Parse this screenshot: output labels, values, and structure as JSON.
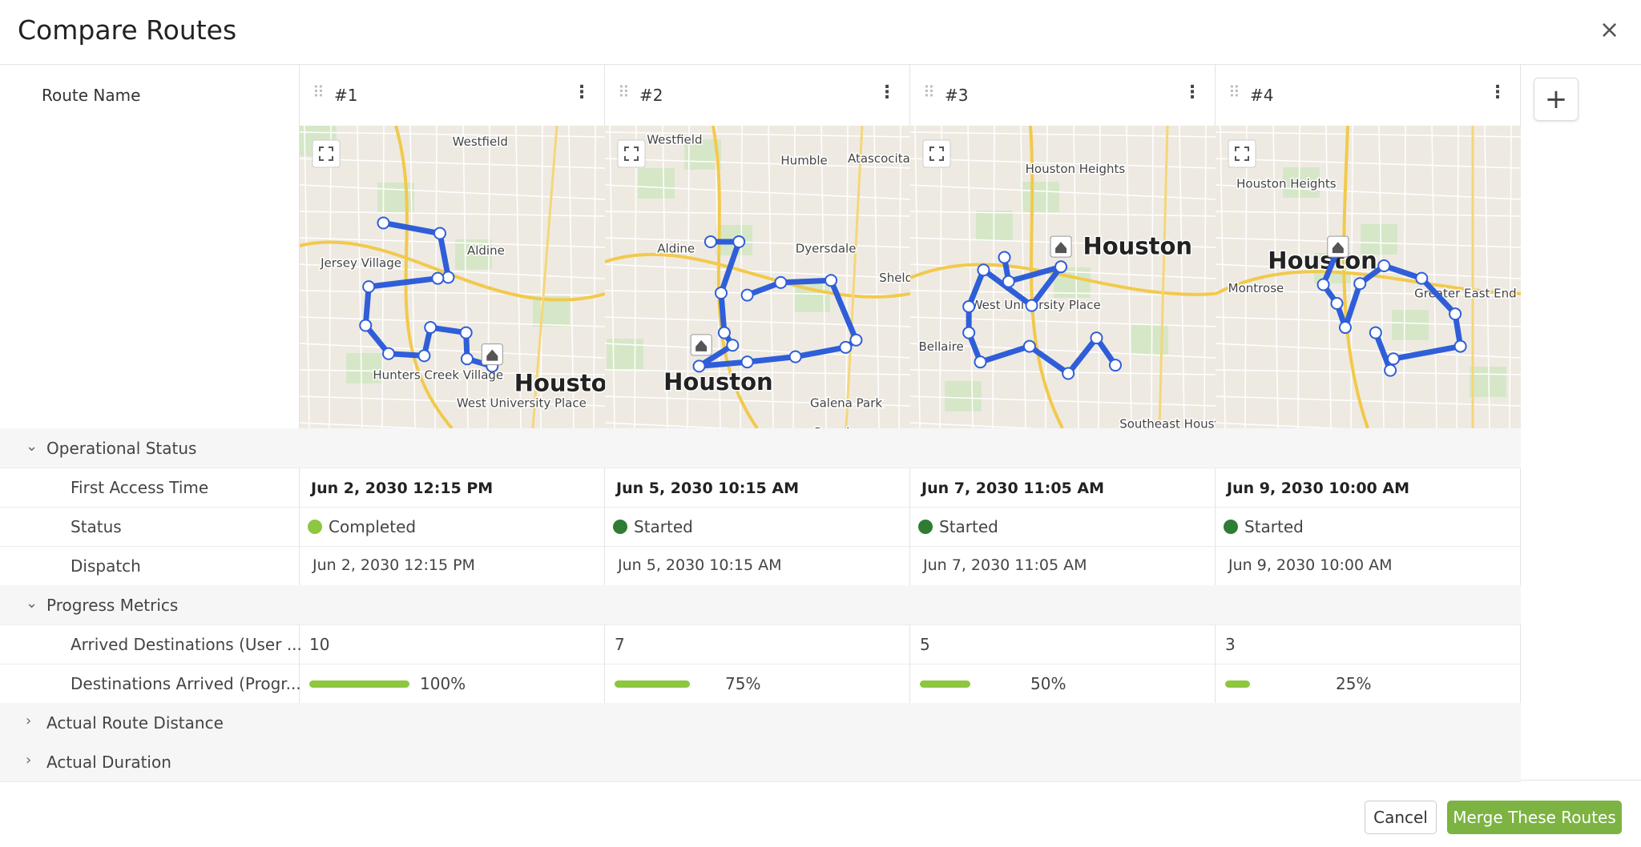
{
  "title": "Compare Routes",
  "row_header": "Route Name",
  "routes": [
    {
      "name": "#1",
      "first_access": "Jun 2, 2030 12:15 PM",
      "status": "Completed",
      "status_color": "#8dc63f",
      "dispatch": "Jun 2, 2030 12:15 PM",
      "arrived": 10,
      "progress": 100,
      "progress_label": "100%",
      "map_labels": [
        "Westfield",
        "Aldine",
        "Jersey Village",
        "Hunters Creek Village",
        "Houston",
        "West University Place"
      ]
    },
    {
      "name": "#2",
      "first_access": "Jun 5, 2030 10:15 AM",
      "status": "Started",
      "status_color": "#2e7d32",
      "dispatch": "Jun 5, 2030 10:15 AM",
      "arrived": 7,
      "progress": 75,
      "progress_label": "75%",
      "map_labels": [
        "Westfield",
        "Humble",
        "Atascocita",
        "Aldine",
        "Dyersdale",
        "Sheldon",
        "Houston",
        "Galena Park",
        "Pasadena"
      ]
    },
    {
      "name": "#3",
      "first_access": "Jun 7, 2030 11:05 AM",
      "status": "Started",
      "status_color": "#2e7d32",
      "dispatch": "Jun 7, 2030 11:05 AM",
      "arrived": 5,
      "progress": 50,
      "progress_label": "50%",
      "map_labels": [
        "Houston Heights",
        "Houston",
        "Bellaire",
        "West University Place",
        "Southeast Houston"
      ]
    },
    {
      "name": "#4",
      "first_access": "Jun 9, 2030 10:00 AM",
      "status": "Started",
      "status_color": "#2e7d32",
      "dispatch": "Jun 9, 2030 10:00 AM",
      "arrived": 3,
      "progress": 25,
      "progress_label": "25%",
      "map_labels": [
        "Houston Heights",
        "Houston",
        "Montrose",
        "Greater East End"
      ]
    }
  ],
  "sections": [
    {
      "name": "Operational Status",
      "expanded": true,
      "rows": [
        "First Access Time",
        "Status",
        "Dispatch"
      ]
    },
    {
      "name": "Progress Metrics",
      "expanded": true,
      "rows": [
        "Arrived Destinations (User ...",
        "Destinations Arrived (Progr..."
      ]
    },
    {
      "name": "Actual Route Distance",
      "expanded": false,
      "rows": []
    },
    {
      "name": "Actual Duration",
      "expanded": false,
      "rows": []
    }
  ],
  "buttons": {
    "cancel": "Cancel",
    "merge": "Merge These Routes"
  }
}
